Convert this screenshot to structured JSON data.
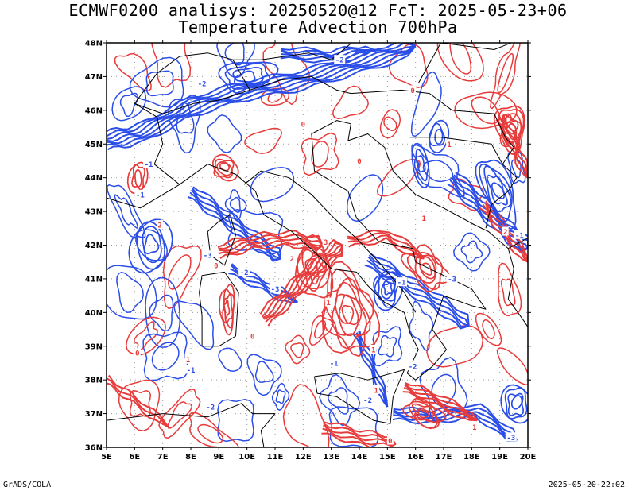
{
  "title_line1": "ECMWF0200 analisys: 20250520@12 FcT: 2025-05-23+06",
  "title_line2": "Temperature Advection 700hPa",
  "footer_left": "GrADS/COLA",
  "footer_right": "2025-05-20-22:02",
  "colors": {
    "warm": "#e83c3c",
    "cold": "#2b4ee8",
    "coast": "#000000",
    "grid": "#999999"
  },
  "map": {
    "lon_range": [
      5,
      20
    ],
    "lat_range": [
      36,
      48
    ],
    "lon_ticks": [
      "5E",
      "6E",
      "7E",
      "8E",
      "9E",
      "10E",
      "11E",
      "12E",
      "13E",
      "14E",
      "15E",
      "16E",
      "17E",
      "18E",
      "19E",
      "20E"
    ],
    "lat_ticks": [
      "36N",
      "37N",
      "38N",
      "39N",
      "40N",
      "41N",
      "42N",
      "43N",
      "44N",
      "45N",
      "46N",
      "47N",
      "48N"
    ],
    "contour_labels": [
      {
        "t": "-2",
        "lon": 8.4,
        "lat": 46.8,
        "c": "cold"
      },
      {
        "t": "-2",
        "lon": 13.3,
        "lat": 47.5,
        "c": "cold"
      },
      {
        "t": "-1",
        "lon": 6.5,
        "lat": 44.4,
        "c": "cold"
      },
      {
        "t": "-1",
        "lon": 6.2,
        "lat": 43.5,
        "c": "cold"
      },
      {
        "t": "-3",
        "lon": 8.6,
        "lat": 41.7,
        "c": "cold"
      },
      {
        "t": "-3",
        "lon": 11.0,
        "lat": 40.7,
        "c": "cold"
      },
      {
        "t": "-2",
        "lon": 9.9,
        "lat": 41.2,
        "c": "cold"
      },
      {
        "t": "-1",
        "lon": 8.0,
        "lat": 38.3,
        "c": "cold"
      },
      {
        "t": "-2",
        "lon": 8.7,
        "lat": 37.2,
        "c": "cold"
      },
      {
        "t": "-1",
        "lon": 13.1,
        "lat": 38.5,
        "c": "cold"
      },
      {
        "t": "-2",
        "lon": 14.3,
        "lat": 37.4,
        "c": "cold"
      },
      {
        "t": "-3",
        "lon": 19.4,
        "lat": 36.3,
        "c": "cold"
      },
      {
        "t": "-1",
        "lon": 19.7,
        "lat": 42.3,
        "c": "cold"
      },
      {
        "t": "-3",
        "lon": 17.3,
        "lat": 41.0,
        "c": "cold"
      },
      {
        "t": "-1",
        "lon": 15.5,
        "lat": 40.9,
        "c": "cold"
      },
      {
        "t": "-2",
        "lon": 15.9,
        "lat": 38.4,
        "c": "cold"
      },
      {
        "t": "2",
        "lon": 11.6,
        "lat": 41.6,
        "c": "warm"
      },
      {
        "t": "3",
        "lon": 12.8,
        "lat": 42.1,
        "c": "warm"
      },
      {
        "t": "0",
        "lon": 8.9,
        "lat": 41.4,
        "c": "warm"
      },
      {
        "t": "0",
        "lon": 10.2,
        "lat": 39.3,
        "c": "warm"
      },
      {
        "t": "1",
        "lon": 12.9,
        "lat": 40.3,
        "c": "warm"
      },
      {
        "t": "1",
        "lon": 14.5,
        "lat": 38.9,
        "c": "warm"
      },
      {
        "t": "1",
        "lon": 16.3,
        "lat": 42.8,
        "c": "warm"
      },
      {
        "t": "2",
        "lon": 19.2,
        "lat": 42.4,
        "c": "warm"
      },
      {
        "t": "1",
        "lon": 17.2,
        "lat": 45.0,
        "c": "warm"
      },
      {
        "t": "0",
        "lon": 12.0,
        "lat": 45.6,
        "c": "warm"
      },
      {
        "t": "0",
        "lon": 6.1,
        "lat": 38.8,
        "c": "warm"
      },
      {
        "t": "1",
        "lon": 7.9,
        "lat": 38.6,
        "c": "warm"
      },
      {
        "t": "0",
        "lon": 14.0,
        "lat": 44.5,
        "c": "warm"
      },
      {
        "t": "1",
        "lon": 14.6,
        "lat": 37.7,
        "c": "warm"
      },
      {
        "t": "0",
        "lon": 15.1,
        "lat": 36.2,
        "c": "warm"
      },
      {
        "t": "1",
        "lon": 18.1,
        "lat": 36.6,
        "c": "warm"
      },
      {
        "t": "0",
        "lon": 15.9,
        "lat": 46.6,
        "c": "warm"
      },
      {
        "t": "2",
        "lon": 6.9,
        "lat": 42.6,
        "c": "warm"
      }
    ]
  }
}
